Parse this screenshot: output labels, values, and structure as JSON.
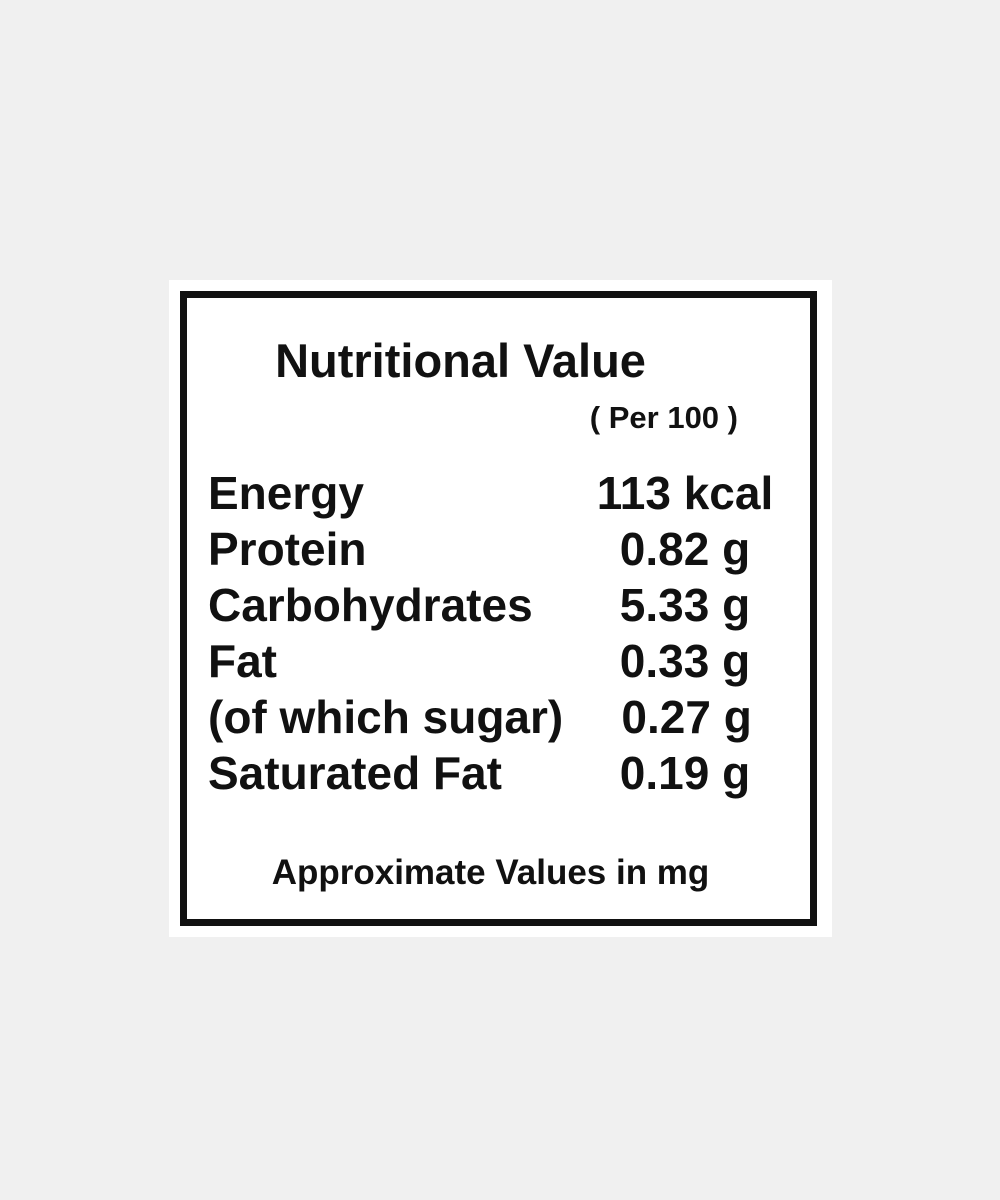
{
  "page": {
    "background_color": "#f0f0f0",
    "card_background_color": "#ffffff",
    "border_color": "#111111",
    "text_color": "#111111"
  },
  "label": {
    "title": "Nutritional Value",
    "serving_note": "( Per 100 )",
    "rows": [
      {
        "name": "Energy",
        "value": "113 kcal"
      },
      {
        "name": "Protein",
        "value": "0.82 g"
      },
      {
        "name": "Carbohydrates",
        "value": "5.33 g"
      },
      {
        "name": "Fat",
        "value": "0.33 g"
      },
      {
        "name": "(of which sugar)",
        "value": "0.27 g"
      },
      {
        "name": "Saturated Fat",
        "value": "0.19 g"
      }
    ],
    "footer": "Approximate Values in mg"
  }
}
